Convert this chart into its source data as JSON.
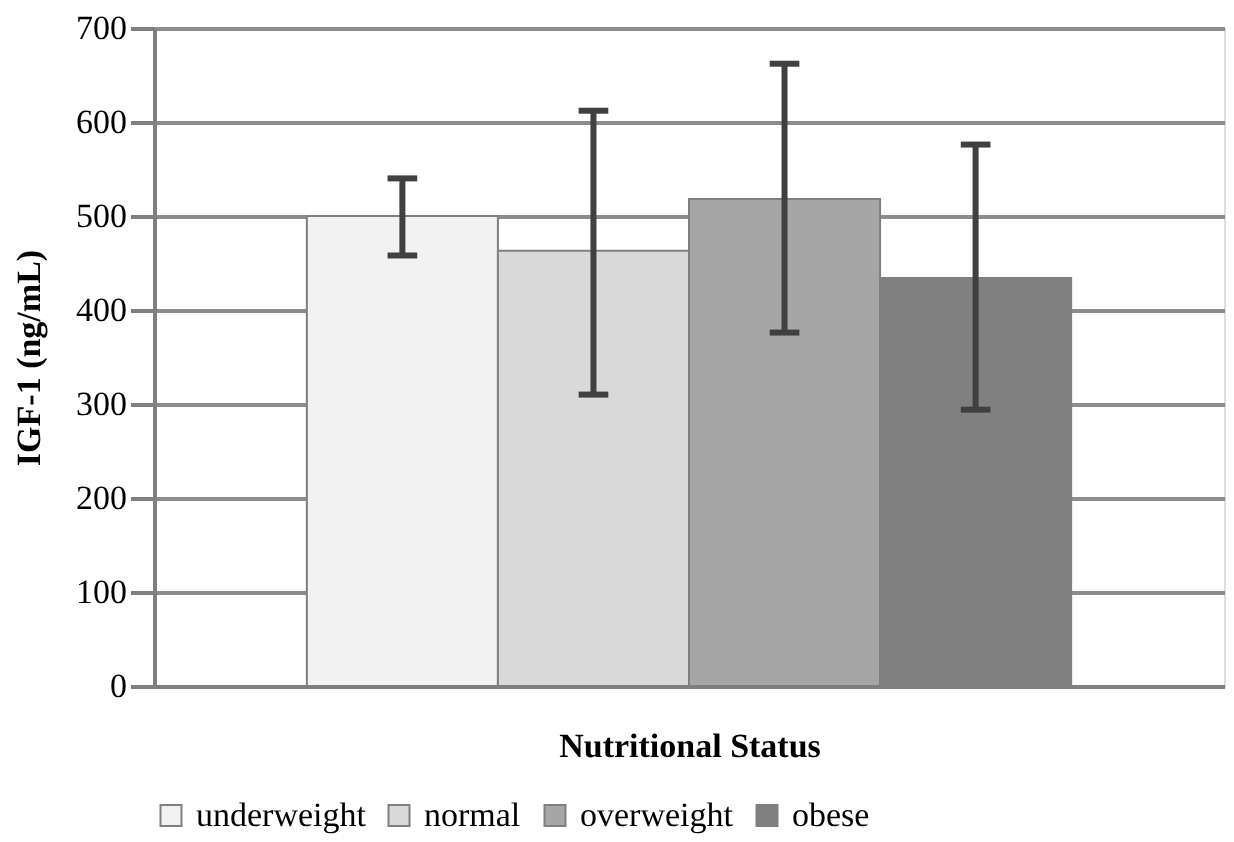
{
  "chart_data": {
    "type": "bar",
    "xlabel": "Nutritional Status",
    "ylabel": "IGF-1 (ng/mL)",
    "categories": [
      null
    ],
    "series": [
      {
        "name": "underweight",
        "color": "#f2f2f2",
        "values": [
          500
        ],
        "errors": [
          [
            458,
            540
          ]
        ]
      },
      {
        "name": "normal",
        "color": "#d9d9d9",
        "values": [
          463
        ],
        "errors": [
          [
            310,
            612
          ]
        ]
      },
      {
        "name": "overweight",
        "color": "#a6a6a6",
        "values": [
          518
        ],
        "errors": [
          [
            376,
            662
          ]
        ]
      },
      {
        "name": "obese",
        "color": "#808080",
        "values": [
          434
        ],
        "errors": [
          [
            294,
            576
          ]
        ]
      }
    ],
    "ylim": [
      0,
      700
    ],
    "yticks": [
      0,
      100,
      200,
      300,
      400,
      500,
      600,
      700
    ],
    "grid": "y",
    "legend": "bottom"
  }
}
